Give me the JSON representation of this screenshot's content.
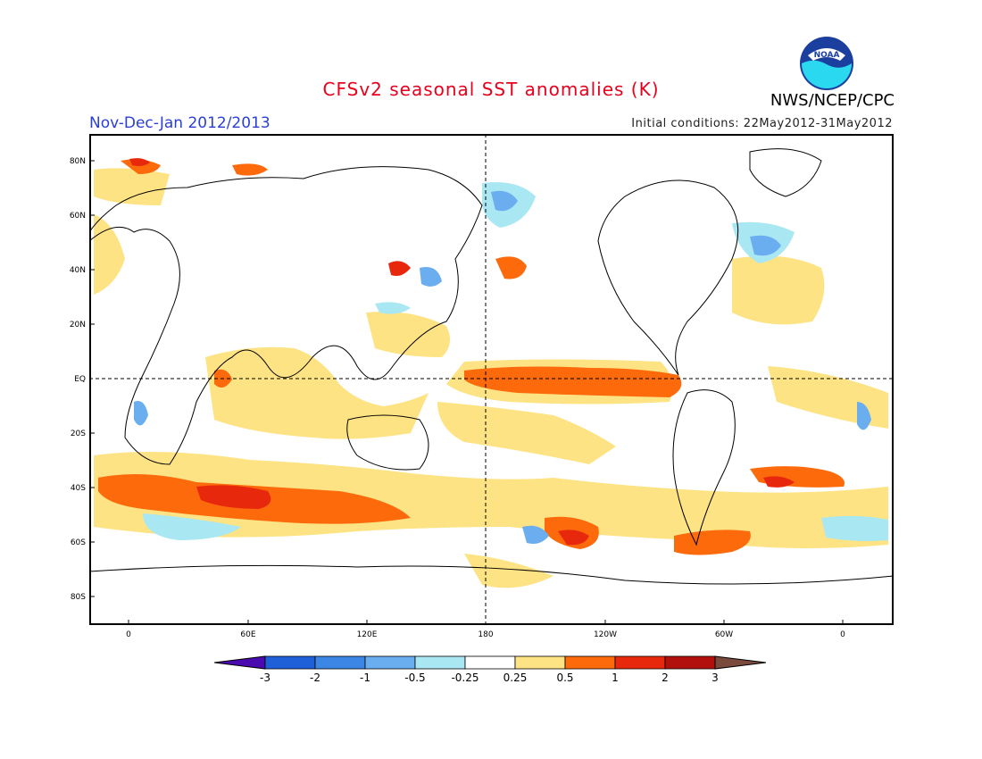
{
  "header": {
    "title": "CFSv2 seasonal SST anomalies (K)",
    "period": "Nov-Dec-Jan 2012/2013",
    "initial_conditions": "Initial conditions: 22May2012-31May2012",
    "agency": "NWS/NCEP/CPC",
    "logo_text": "NOAA"
  },
  "axes": {
    "lat_labels": [
      "80N",
      "60N",
      "40N",
      "20N",
      "EQ",
      "20S",
      "40S",
      "60S",
      "80S"
    ],
    "lon_labels": [
      "0",
      "60E",
      "120E",
      "180",
      "120W",
      "60W",
      "0"
    ]
  },
  "colorbar": {
    "labels": [
      "-3",
      "-2",
      "-1",
      "-0.5",
      "-0.25",
      "0.25",
      "0.5",
      "1",
      "2",
      "3"
    ],
    "colors": [
      "#4b0ab0",
      "#1f5fd8",
      "#3c86e6",
      "#6aaeef",
      "#a9e7f3",
      "#ffffff",
      "#fde383",
      "#fc6a0c",
      "#e8280c",
      "#b2100c",
      "#7a4b3c"
    ]
  },
  "legend": {
    "warm_colors": {
      "w1": "#fde383",
      "w2": "#fc6a0c",
      "w3": "#e8280c",
      "w4": "#b2100c"
    },
    "cool_colors": {
      "c1": "#a9e7f3",
      "c2": "#6aaeef",
      "c3": "#3c86e6"
    }
  }
}
